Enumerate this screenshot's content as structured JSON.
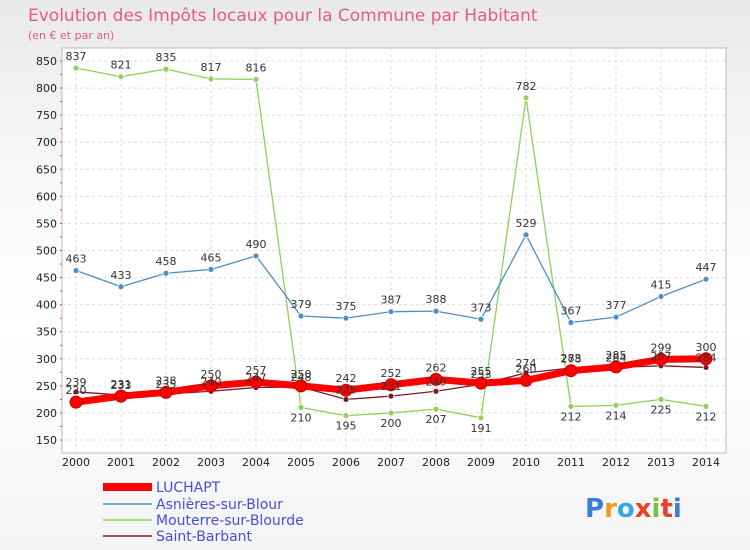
{
  "chart_data": {
    "type": "line",
    "title": "Evolution des Impôts locaux pour la Commune par Habitant",
    "subtitle": "(en € et par an)",
    "x": [
      "2000",
      "2001",
      "2002",
      "2003",
      "2004",
      "2005",
      "2006",
      "2007",
      "2008",
      "2009",
      "2010",
      "2011",
      "2012",
      "2013",
      "2014"
    ],
    "ylim": [
      150,
      850
    ],
    "yticks": [
      150,
      200,
      250,
      300,
      350,
      400,
      450,
      500,
      550,
      600,
      650,
      700,
      750,
      800,
      850
    ],
    "grid": true,
    "legend_placement": "bottom-left",
    "series": [
      {
        "name": "LUCHAPT",
        "color": "#ff0000",
        "values": [
          220,
          231,
          238,
          250,
          257,
          250,
          242,
          252,
          262,
          255,
          260,
          278,
          285,
          299,
          300
        ]
      },
      {
        "name": "Asnières-sur-Blour",
        "color": "#4a90c8",
        "values": [
          463,
          433,
          458,
          465,
          490,
          379,
          375,
          387,
          388,
          373,
          529,
          367,
          377,
          415,
          447
        ]
      },
      {
        "name": "Mouterre-sur-Blourde",
        "color": "#8fd05a",
        "values": [
          837,
          821,
          835,
          817,
          816,
          210,
          195,
          200,
          207,
          191,
          782,
          212,
          214,
          225,
          212
        ]
      },
      {
        "name": "Saint-Barbant",
        "color": "#7a1a28",
        "values": [
          239,
          233,
          235,
          240,
          247,
          248,
          225,
          231,
          240,
          253,
          274,
          283,
          284,
          287,
          284
        ]
      }
    ]
  },
  "logo": {
    "text": "Proxiti"
  }
}
